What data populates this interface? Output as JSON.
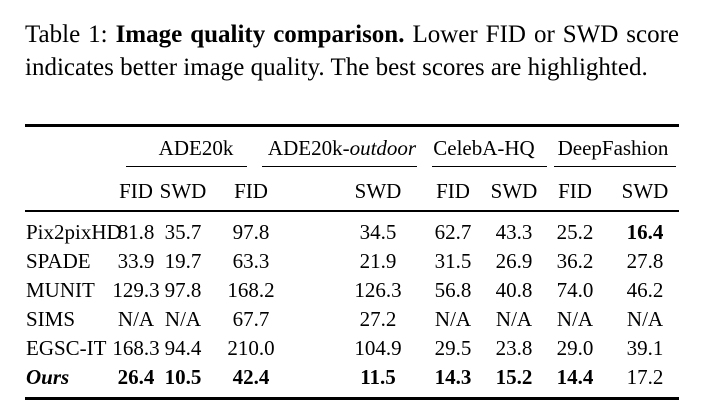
{
  "caption": {
    "label": "Table 1:",
    "title": "Image quality comparison.",
    "text": "Lower FID or SWD score indicates better image quality.  The best scores are highlighted."
  },
  "table": {
    "groups": [
      {
        "name_plain": "ADE20k",
        "name_italic": ""
      },
      {
        "name_plain": "ADE20k-",
        "name_italic": "outdoor"
      },
      {
        "name_plain": "CelebA-HQ",
        "name_italic": ""
      },
      {
        "name_plain": "DeepFashion",
        "name_italic": ""
      }
    ],
    "metrics": [
      "FID",
      "SWD",
      "FID",
      "SWD",
      "FID",
      "SWD",
      "FID",
      "SWD"
    ],
    "rows": [
      {
        "method": "Pix2pixHD",
        "values": [
          "81.8",
          "35.7",
          "97.8",
          "34.5",
          "62.7",
          "43.3",
          "25.2",
          "16.4"
        ],
        "best": [
          false,
          false,
          false,
          false,
          false,
          false,
          false,
          true
        ],
        "italic": false
      },
      {
        "method": "SPADE",
        "values": [
          "33.9",
          "19.7",
          "63.3",
          "21.9",
          "31.5",
          "26.9",
          "36.2",
          "27.8"
        ],
        "best": [
          false,
          false,
          false,
          false,
          false,
          false,
          false,
          false
        ],
        "italic": false
      },
      {
        "method": "MUNIT",
        "values": [
          "129.3",
          "97.8",
          "168.2",
          "126.3",
          "56.8",
          "40.8",
          "74.0",
          "46.2"
        ],
        "best": [
          false,
          false,
          false,
          false,
          false,
          false,
          false,
          false
        ],
        "italic": false
      },
      {
        "method": "SIMS",
        "values": [
          "N/A",
          "N/A",
          "67.7",
          "27.2",
          "N/A",
          "N/A",
          "N/A",
          "N/A"
        ],
        "best": [
          false,
          false,
          false,
          false,
          false,
          false,
          false,
          false
        ],
        "italic": false
      },
      {
        "method": "EGSC-IT",
        "values": [
          "168.3",
          "94.4",
          "210.0",
          "104.9",
          "29.5",
          "23.8",
          "29.0",
          "39.1"
        ],
        "best": [
          false,
          false,
          false,
          false,
          false,
          false,
          false,
          false
        ],
        "italic": false
      },
      {
        "method": "Ours",
        "values": [
          "26.4",
          "10.5",
          "42.4",
          "11.5",
          "14.3",
          "15.2",
          "14.4",
          "17.2"
        ],
        "best": [
          true,
          true,
          true,
          true,
          true,
          true,
          true,
          false
        ],
        "italic": true
      }
    ]
  }
}
